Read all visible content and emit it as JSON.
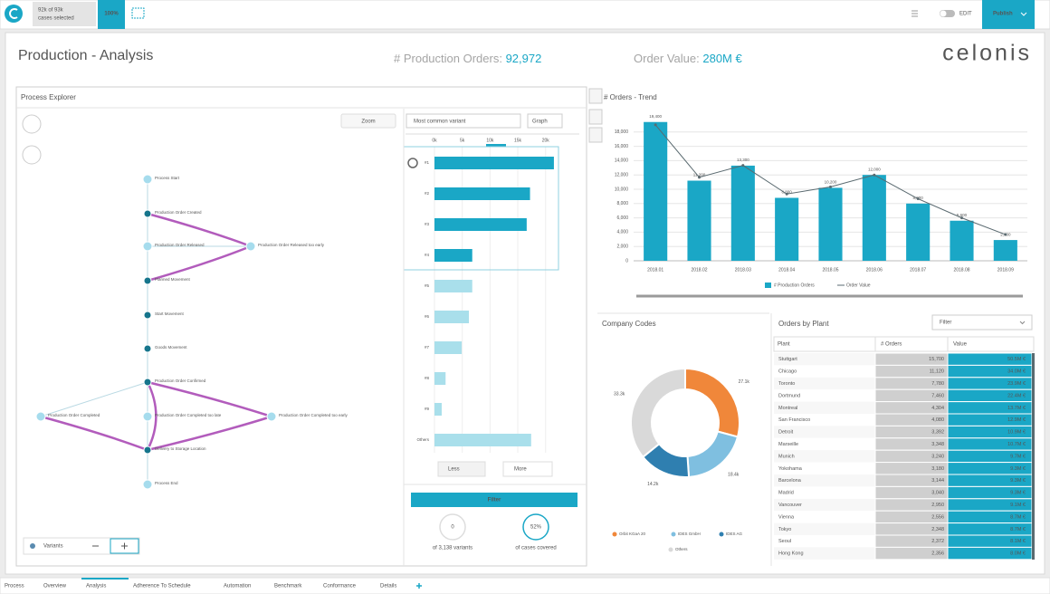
{
  "topbar": {
    "selection": "92k of 93k",
    "selection_sub": "cases selected",
    "percent": "100%",
    "mode": "EDIT",
    "publish": "Publish"
  },
  "header": {
    "title": "Production - Analysis",
    "kpis": [
      {
        "label": "# Production Orders: ",
        "value": "92,972"
      },
      {
        "label": "Order Value: ",
        "value": "280M €"
      }
    ],
    "logo": "celonis"
  },
  "process_explorer": {
    "title": "Process Explorer",
    "zoom": "Zoom",
    "variant_select": "Most common variant",
    "view_select": "Graph",
    "nodes": [
      "Process Start",
      "Production Order Created",
      "Production Order Released",
      "Production Order Released too early",
      "Planned Movement",
      "Start Movement",
      "Goods Movement",
      "Production Order Confirmed",
      "Production Order Completed",
      "Production Order Completed too late",
      "Production Order Completed too early",
      "Delivery to Storage Location",
      "Process End"
    ],
    "less": "Less",
    "more": "More",
    "filter": "Filter",
    "stats": [
      {
        "value": "0",
        "label": "of 3,138 variants"
      },
      {
        "value": "52%",
        "label": "of cases covered"
      }
    ],
    "variants": "Variants"
  },
  "chart_data": [
    {
      "type": "bar",
      "title": "# Orders - Trend",
      "categories": [
        "2018.01",
        "2018.02",
        "2018.03",
        "2018.04",
        "2018.05",
        "2018.06",
        "2018.07",
        "2018.08",
        "2018.09"
      ],
      "series": [
        {
          "name": "# Production Orders",
          "color": "#1aa7c6",
          "values": [
            19400,
            11200,
            13300,
            8800,
            10200,
            12000,
            8000,
            5600,
            2900
          ],
          "value_labels": [
            "19,400",
            "11,200",
            "13,300",
            "8,800",
            "10,200",
            "12,000",
            "8,000",
            "5,600",
            "2,900"
          ]
        },
        {
          "name": "Order Value",
          "type": "line",
          "color": "#5a6a70",
          "axis": "y2",
          "values": [
            57,
            35,
            40,
            28,
            31,
            36,
            26,
            18,
            11
          ]
        }
      ],
      "ylim": [
        0,
        20000
      ],
      "yticks": [
        0,
        {
          "value": 2000,
          "label": "2,000"
        },
        {
          "value": 4000,
          "label": "4,000"
        },
        {
          "value": 6000,
          "label": "6,000"
        },
        {
          "value": 8000,
          "label": "8,000"
        },
        {
          "value": 10000,
          "label": "10,000"
        },
        {
          "value": 12000,
          "label": "12,000"
        },
        {
          "value": 14000,
          "label": "14,000"
        },
        {
          "value": 16000,
          "label": "16,000"
        },
        {
          "value": 18000,
          "label": "18,000"
        }
      ],
      "y2lim": [
        0,
        60
      ],
      "grid": true
    },
    {
      "type": "pie",
      "title": "Company Codes",
      "donut": true,
      "categories": [
        "Orbit KGaA 20",
        "IDES GmbH",
        "IDES AG",
        "Others"
      ],
      "values": [
        27.1,
        18.4,
        14.2,
        33.3
      ],
      "value_labels": [
        "27.1k",
        "18.4k",
        "14.2k",
        "33.3k"
      ],
      "colors": [
        "#f0873a",
        "#7fbfe0",
        "#2f7fb0",
        "#d9d9d9"
      ]
    },
    {
      "type": "hbar",
      "categories": [
        "#1",
        "#2",
        "#3",
        "#4",
        "#5",
        "#6",
        "#7",
        "#8",
        "#9",
        "Others"
      ],
      "values": [
        21.5,
        17.2,
        16.6,
        6.8,
        6.8,
        6.2,
        4.9,
        2.0,
        1.3,
        17.4
      ],
      "colors": [
        "#1aa7c6",
        "#1aa7c6",
        "#1aa7c6",
        "#1aa7c6",
        "#a9dfeb",
        "#a9dfeb",
        "#a9dfeb",
        "#a9dfeb",
        "#a9dfeb",
        "#a9dfeb"
      ],
      "xlim": [
        0,
        22
      ],
      "xticks": [
        {
          "value": 0,
          "label": "0k"
        },
        {
          "value": 5,
          "label": "5k"
        },
        {
          "value": 10,
          "label": "10k"
        },
        {
          "value": 15,
          "label": "15k"
        },
        {
          "value": 20,
          "label": "20k"
        }
      ]
    }
  ],
  "plant_table": {
    "title": "Orders by Plant",
    "filter": "Filter",
    "columns": [
      "Plant",
      "# Orders",
      "Value"
    ],
    "rows": [
      [
        "Stuttgart",
        "15,700",
        "50.5M €"
      ],
      [
        "Chicago",
        "11,120",
        "34.0M €"
      ],
      [
        "Toronto",
        "7,780",
        "23.9M €"
      ],
      [
        "Dortmund",
        "7,460",
        "22.4M €"
      ],
      [
        "Montreal",
        "4,304",
        "13.7M €"
      ],
      [
        "San Francisco",
        "4,080",
        "12.9M €"
      ],
      [
        "Detroit",
        "3,392",
        "10.9M €"
      ],
      [
        "Marseille",
        "3,348",
        "10.7M €"
      ],
      [
        "Munich",
        "3,240",
        "9.7M €"
      ],
      [
        "Yokohama",
        "3,180",
        "9.3M €"
      ],
      [
        "Barcelona",
        "3,144",
        "9.3M €"
      ],
      [
        "Madrid",
        "3,040",
        "9.3M €"
      ],
      [
        "Vancouver",
        "2,950",
        "9.1M €"
      ],
      [
        "Vienna",
        "2,556",
        "8.7M €"
      ],
      [
        "Tokyo",
        "2,348",
        "8.7M €"
      ],
      [
        "Seoul",
        "2,372",
        "8.1M €"
      ],
      [
        "Hong Kong",
        "2,356",
        "8.0M €"
      ]
    ]
  },
  "tabs": [
    "Process",
    "Overview",
    "Analysis",
    "Adherence To Schedule",
    "Automation",
    "Benchmark",
    "Conformance",
    "Details"
  ]
}
